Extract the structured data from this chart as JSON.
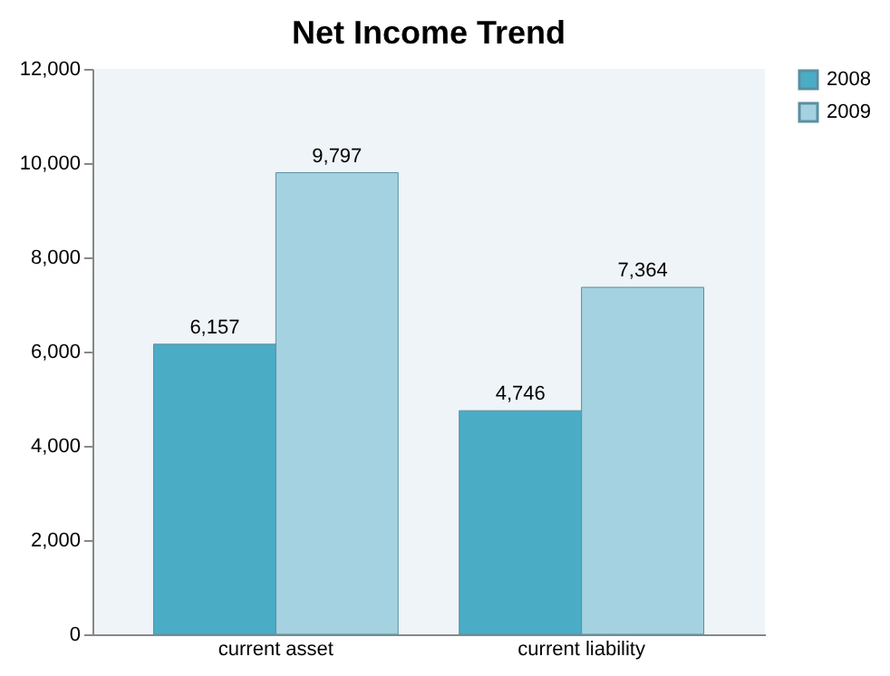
{
  "chart_data": {
    "type": "bar",
    "title": "Net Income Trend",
    "categories": [
      "current asset",
      "current liability"
    ],
    "series": [
      {
        "name": "2008",
        "color": "#4bacc6",
        "values": [
          6157,
          4746
        ],
        "value_labels": [
          "6,157",
          "4,746"
        ]
      },
      {
        "name": "2009",
        "color": "#a5d2e0",
        "values": [
          9797,
          7364
        ],
        "value_labels": [
          "9,797",
          "7,364"
        ]
      }
    ],
    "ylim": [
      0,
      12000
    ],
    "yticks": [
      0,
      {
        "value": 2000,
        "label": "2,000"
      },
      {
        "value": 4000,
        "label": "4,000"
      },
      {
        "value": 6000,
        "label": "6,000"
      },
      {
        "value": 8000,
        "label": "8,000"
      },
      {
        "value": 10000,
        "label": "10,000"
      },
      {
        "value": 12000,
        "label": "12,000"
      }
    ],
    "grid": false,
    "legend": "right"
  }
}
